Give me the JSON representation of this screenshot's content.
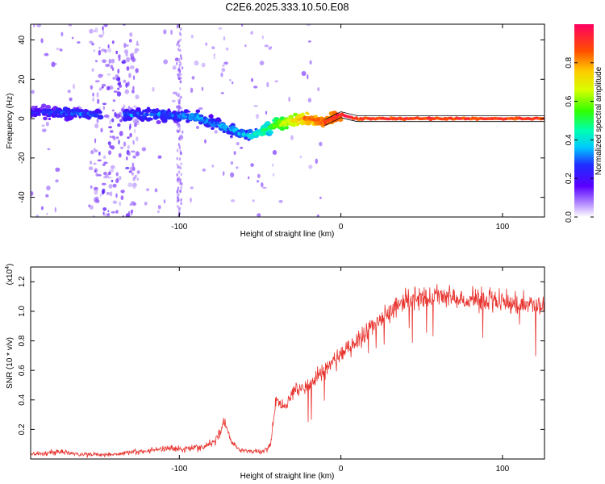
{
  "title": "C2E6.2025.333.10.50.E08",
  "chart_data": [
    {
      "type": "heatmap",
      "name": "spectrogram",
      "xlabel": "Height of straight line (km)",
      "ylabel": "Frequency (Hz)",
      "xlim": [
        -192,
        126
      ],
      "ylim": [
        -50,
        48
      ],
      "xticks": [
        -100,
        0,
        100
      ],
      "xtick_labels": [
        "-100",
        "0",
        "100"
      ],
      "yticks": [
        -40,
        -20,
        0,
        20,
        40
      ],
      "ytick_labels": [
        "-40",
        "-20",
        "0",
        "20",
        "40"
      ],
      "colorbar": {
        "label": "Normalized spectral amplitude",
        "range": [
          0,
          1
        ],
        "ticks": [
          0,
          0.2,
          0.4,
          0.6,
          0.8
        ],
        "tick_labels": [
          "0.0",
          "0.2",
          "0.4",
          "0.6",
          "0.8"
        ]
      },
      "ridge": {
        "x": [
          -192,
          -170,
          -150,
          -130,
          -110,
          -90,
          -80,
          -70,
          -60,
          -55,
          -50,
          -40,
          -30,
          -20,
          -10,
          0,
          5,
          10,
          20,
          40,
          60,
          80,
          100,
          126
        ],
        "y": [
          3,
          3,
          2,
          2,
          2,
          1,
          -2,
          -5,
          -8,
          -9,
          -7,
          -3,
          -1,
          0,
          -2,
          2,
          1,
          0,
          0,
          0,
          0,
          0,
          0,
          0
        ],
        "amplitude": [
          0.25,
          0.3,
          0.3,
          0.3,
          0.32,
          0.35,
          0.35,
          0.35,
          0.35,
          0.4,
          0.45,
          0.6,
          0.75,
          0.85,
          0.9,
          0.95,
          0.95,
          0.9,
          0.9,
          0.9,
          0.9,
          0.9,
          0.9,
          0.9
        ]
      }
    },
    {
      "type": "line",
      "name": "snr",
      "xlabel": "Height of straight line (km)",
      "ylabel": "SNR (10 * v/v)",
      "scale_note": "(x10",
      "scale_exp": "4",
      "scale_close": ")",
      "xlim": [
        -192,
        126
      ],
      "ylim": [
        0,
        1.3
      ],
      "xticks": [
        -100,
        0,
        100
      ],
      "xtick_labels": [
        "-100",
        "0",
        "100"
      ],
      "yticks": [
        0.2,
        0.4,
        0.6,
        0.8,
        1.0,
        1.2
      ],
      "ytick_labels": [
        "0.2",
        "0.4",
        "0.6",
        "0.8",
        "1.0",
        "1.2"
      ],
      "color": "#e8332e",
      "envelope": {
        "x": [
          -192,
          -175,
          -160,
          -140,
          -125,
          -110,
          -95,
          -85,
          -78,
          -72,
          -68,
          -62,
          -55,
          -48,
          -44,
          -40,
          -35,
          -30,
          -20,
          -10,
          0,
          10,
          20,
          30,
          40,
          60,
          80,
          100,
          115,
          126
        ],
        "y": [
          0.03,
          0.05,
          0.03,
          0.03,
          0.05,
          0.07,
          0.07,
          0.08,
          0.12,
          0.25,
          0.12,
          0.06,
          0.05,
          0.05,
          0.08,
          0.4,
          0.35,
          0.45,
          0.5,
          0.6,
          0.7,
          0.8,
          0.9,
          1.0,
          1.08,
          1.1,
          1.08,
          1.06,
          1.05,
          1.03
        ]
      }
    }
  ]
}
